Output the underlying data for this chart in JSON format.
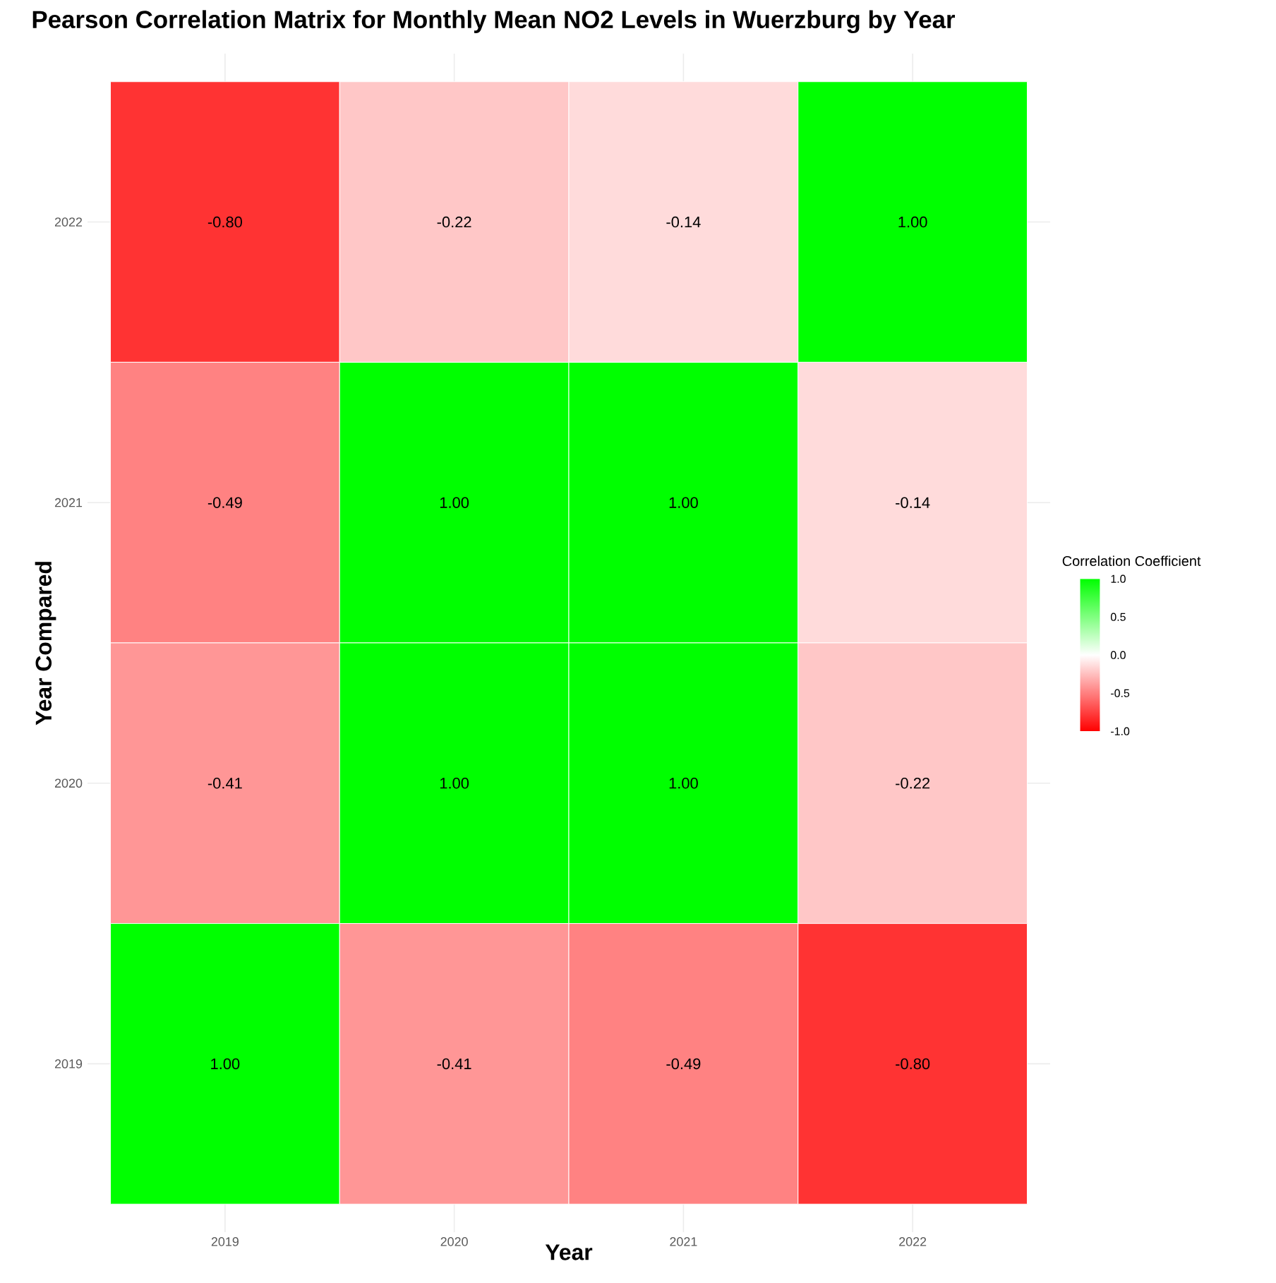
{
  "chart_data": {
    "type": "heatmap",
    "title": "Pearson Correlation Matrix for Monthly Mean NO2 Levels in Wuerzburg by Year",
    "xlabel": "Year",
    "ylabel": "Year Compared",
    "clabel": "Correlation Coefficient",
    "categories": [
      "2019",
      "2020",
      "2021",
      "2022"
    ],
    "y_categories": [
      "2022",
      "2021",
      "2020",
      "2019"
    ],
    "cells": [
      [
        -0.8,
        -0.22,
        -0.14,
        1.0
      ],
      [
        -0.49,
        1.0,
        1.0,
        -0.14
      ],
      [
        -0.41,
        1.0,
        1.0,
        -0.22
      ],
      [
        1.0,
        -0.41,
        -0.49,
        -0.8
      ]
    ],
    "cell_labels": [
      [
        "-0.80",
        "-0.22",
        "-0.14",
        "1.00"
      ],
      [
        "-0.49",
        "1.00",
        "1.00",
        "-0.14"
      ],
      [
        "-0.41",
        "1.00",
        "1.00",
        "-0.22"
      ],
      [
        "1.00",
        "-0.41",
        "-0.49",
        "-0.80"
      ]
    ],
    "clim": [
      -1,
      1
    ],
    "cticks": [
      {
        "value": -1,
        "label": "-1.0"
      },
      {
        "value": -0.5,
        "label": "-0.5"
      },
      {
        "value": 0,
        "label": "0.0"
      },
      {
        "value": 0.5,
        "label": "0.5"
      },
      {
        "value": 1,
        "label": "1.0"
      }
    ],
    "grid": true
  }
}
